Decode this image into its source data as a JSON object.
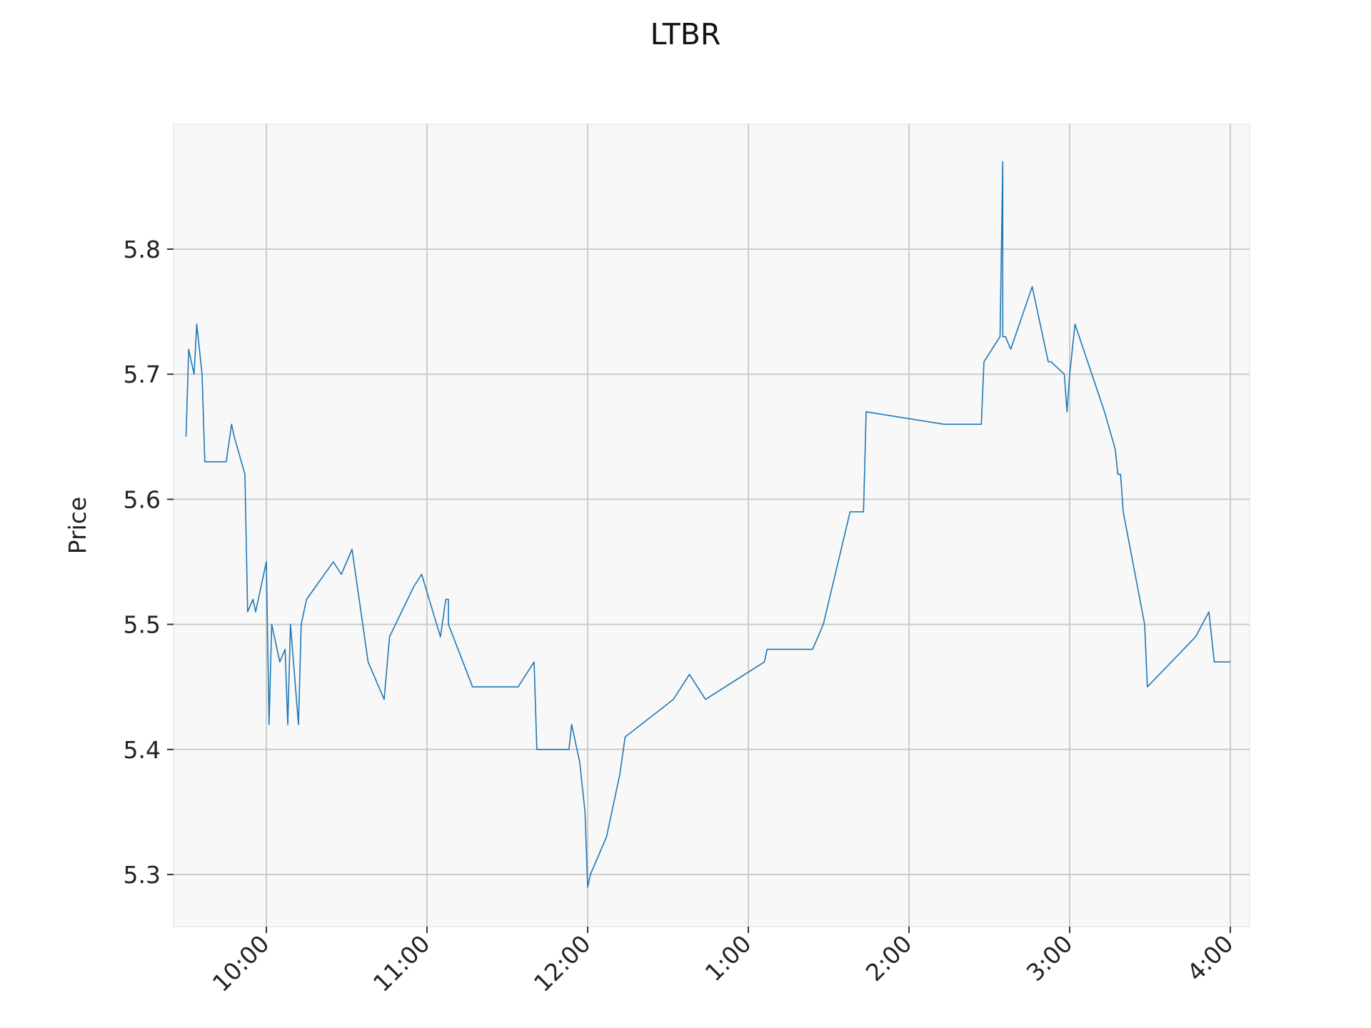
{
  "chart_data": {
    "type": "line",
    "title": "LTBR",
    "xlabel": "",
    "ylabel": "Price",
    "grid": true,
    "legend": "none",
    "x_tick_labels": [
      "10:00",
      "11:00",
      "12:00",
      "1:00",
      "2:00",
      "3:00",
      "4:00"
    ],
    "y_tick_labels": [
      "5.3",
      "5.4",
      "5.5",
      "5.6",
      "5.7",
      "5.8"
    ],
    "xlim": [
      "09:30",
      "16:00"
    ],
    "ylim": [
      5.26,
      5.9
    ],
    "colors": {
      "line": "#1f77b4",
      "plot_bg": "#f8f8f8",
      "grid": "#cccccc"
    },
    "series": [
      {
        "x": [
          "09:30",
          "09:31",
          "09:33",
          "09:34",
          "09:36",
          "09:37",
          "09:45",
          "09:47",
          "09:48",
          "09:52",
          "09:53",
          "09:55",
          "09:56",
          "10:00",
          "10:01",
          "10:02",
          "10:05",
          "10:07",
          "10:08",
          "10:09",
          "10:12",
          "10:13",
          "10:15",
          "10:25",
          "10:28",
          "10:32",
          "10:38",
          "10:44",
          "10:46",
          "10:55",
          "10:58",
          "11:05",
          "11:07",
          "11:08",
          "11:08",
          "11:17",
          "11:34",
          "11:40",
          "11:41",
          "11:53",
          "11:54",
          "11:57",
          "11:59",
          "12:00",
          "12:01",
          "12:07",
          "12:09",
          "12:12",
          "12:14",
          "12:32",
          "12:38",
          "12:44",
          "13:06",
          "13:07",
          "13:24",
          "13:28",
          "13:38",
          "13:41",
          "13:43",
          "13:44",
          "14:13",
          "14:27",
          "14:28",
          "14:34",
          "14:35",
          "14:35",
          "14:36",
          "14:38",
          "14:46",
          "14:52",
          "14:53",
          "14:58",
          "14:59",
          "15:00",
          "15:02",
          "15:13",
          "15:17",
          "15:18",
          "15:19",
          "15:20",
          "15:28",
          "15:29",
          "15:47",
          "15:52",
          "15:54",
          "16:00"
        ],
        "y": [
          5.65,
          5.72,
          5.7,
          5.74,
          5.7,
          5.63,
          5.63,
          5.66,
          5.65,
          5.62,
          5.51,
          5.52,
          5.51,
          5.55,
          5.42,
          5.5,
          5.47,
          5.48,
          5.42,
          5.5,
          5.42,
          5.5,
          5.52,
          5.55,
          5.54,
          5.56,
          5.47,
          5.44,
          5.49,
          5.53,
          5.54,
          5.49,
          5.52,
          5.52,
          5.5,
          5.45,
          5.45,
          5.47,
          5.4,
          5.4,
          5.42,
          5.39,
          5.35,
          5.29,
          5.3,
          5.33,
          5.35,
          5.38,
          5.41,
          5.44,
          5.46,
          5.44,
          5.47,
          5.48,
          5.48,
          5.5,
          5.59,
          5.59,
          5.59,
          5.67,
          5.66,
          5.66,
          5.71,
          5.73,
          5.87,
          5.73,
          5.73,
          5.72,
          5.77,
          5.71,
          5.71,
          5.7,
          5.67,
          5.7,
          5.74,
          5.67,
          5.64,
          5.62,
          5.62,
          5.59,
          5.5,
          5.45,
          5.49,
          5.51,
          5.47,
          5.47
        ]
      }
    ]
  }
}
